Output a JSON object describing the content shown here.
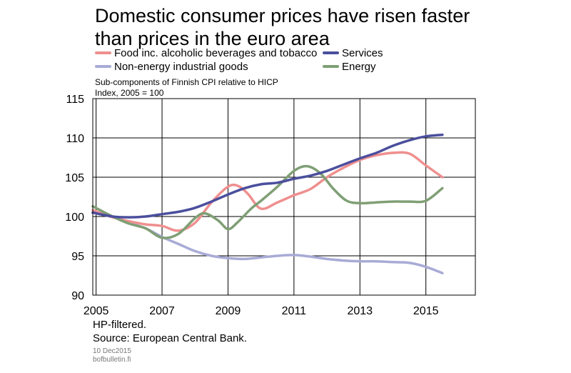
{
  "title_line1": "Domestic consumer prices have risen faster",
  "title_line2": "than prices in the euro area",
  "subtitle_line1": "Sub-components  of Finnish CPI relative to HICP",
  "subtitle_line2": "Index, 2005 = 100",
  "notes": [
    "HP-filtered.",
    "Source: European Central Bank."
  ],
  "footer": {
    "date": "10 Dec2015",
    "site": "bofbulletin.fi"
  },
  "chart_data": {
    "type": "line",
    "title": "Domestic consumer prices have risen faster than prices in the euro area",
    "ylabel": "Index, 2005 = 100",
    "xlim": [
      2004.9,
      2016.5
    ],
    "ylim": [
      90,
      115
    ],
    "y_ticks": [
      90,
      95,
      100,
      105,
      110,
      115
    ],
    "x_ticks": [
      2005,
      2007,
      2009,
      2011,
      2013,
      2015
    ],
    "grid": true,
    "legend_position": "top",
    "series": [
      {
        "name": "Food inc. alcoholic beverages and tobacco",
        "color": "#ef8f8f",
        "x": [
          2004.9,
          2005.5,
          2006.0,
          2006.5,
          2007.0,
          2007.5,
          2008.0,
          2008.5,
          2009.0,
          2009.3,
          2009.6,
          2010.0,
          2010.5,
          2011.0,
          2011.5,
          2012.0,
          2012.5,
          2013.0,
          2013.5,
          2014.0,
          2014.5,
          2015.0,
          2015.5
        ],
        "values": [
          100.8,
          99.9,
          99.4,
          99.0,
          98.8,
          98.2,
          99.2,
          101.8,
          103.8,
          103.9,
          102.9,
          101.0,
          101.8,
          102.7,
          103.5,
          105.0,
          106.2,
          107.2,
          107.8,
          108.1,
          108.0,
          106.5,
          105.0
        ]
      },
      {
        "name": "Services",
        "color": "#4b4f9d",
        "x": [
          2004.9,
          2005.5,
          2006.0,
          2006.5,
          2007.0,
          2007.5,
          2008.0,
          2008.5,
          2009.0,
          2009.5,
          2010.0,
          2010.5,
          2011.0,
          2011.5,
          2012.0,
          2012.5,
          2013.0,
          2013.5,
          2014.0,
          2014.5,
          2015.0,
          2015.5
        ],
        "values": [
          100.5,
          100.0,
          99.9,
          100.0,
          100.3,
          100.6,
          101.1,
          101.9,
          102.8,
          103.6,
          104.1,
          104.3,
          104.8,
          105.2,
          105.8,
          106.6,
          107.4,
          108.1,
          109.0,
          109.7,
          110.2,
          110.4
        ]
      },
      {
        "name": "Non-energy industrial goods",
        "color": "#a8abd6",
        "x": [
          2004.9,
          2005.5,
          2006.0,
          2006.5,
          2007.0,
          2007.5,
          2008.0,
          2008.5,
          2009.0,
          2009.5,
          2010.0,
          2010.5,
          2011.0,
          2011.5,
          2012.0,
          2012.5,
          2013.0,
          2013.5,
          2014.0,
          2014.5,
          2015.0,
          2015.5
        ],
        "values": [
          100.5,
          100.0,
          99.2,
          98.5,
          97.4,
          96.5,
          95.6,
          95.0,
          94.7,
          94.6,
          94.8,
          95.0,
          95.1,
          94.9,
          94.6,
          94.4,
          94.3,
          94.3,
          94.2,
          94.1,
          93.6,
          92.8
        ]
      },
      {
        "name": "Energy",
        "color": "#7f9f75",
        "x": [
          2004.9,
          2005.5,
          2006.0,
          2006.5,
          2007.0,
          2007.5,
          2008.0,
          2008.3,
          2008.7,
          2009.0,
          2009.3,
          2009.7,
          2010.0,
          2010.5,
          2011.0,
          2011.4,
          2011.8,
          2012.2,
          2012.6,
          2013.0,
          2013.5,
          2014.0,
          2014.5,
          2015.0,
          2015.5
        ],
        "values": [
          101.3,
          100.0,
          99.1,
          98.5,
          97.3,
          97.8,
          99.8,
          100.4,
          99.5,
          98.4,
          99.3,
          101.0,
          102.0,
          103.8,
          105.8,
          106.4,
          105.5,
          103.5,
          102.0,
          101.7,
          101.8,
          101.9,
          101.9,
          102.0,
          103.6
        ]
      }
    ]
  }
}
